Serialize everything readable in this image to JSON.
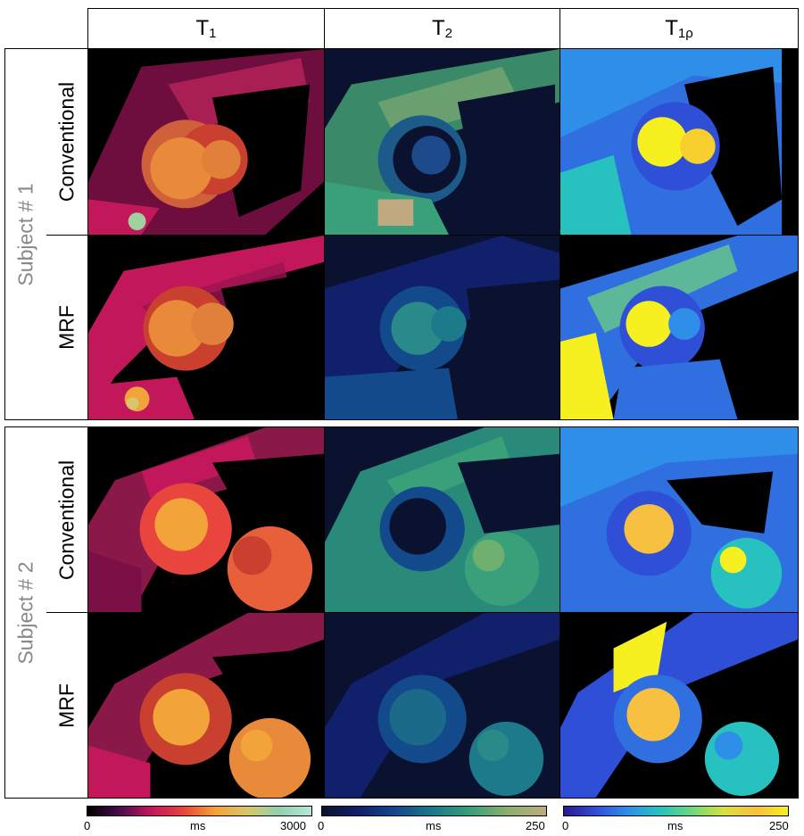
{
  "columns": [
    {
      "symbol": "T",
      "subscript": "1"
    },
    {
      "symbol": "T",
      "subscript": "2"
    },
    {
      "symbol": "T",
      "subscript": "1ρ"
    }
  ],
  "subjects": [
    {
      "label": "Subject # 1",
      "rows": [
        "Conventional",
        "MRF"
      ]
    },
    {
      "label": "Subject # 2",
      "rows": [
        "Conventional",
        "MRF"
      ]
    }
  ],
  "colorbars": [
    {
      "min": "0",
      "unit": "ms",
      "max": "3000",
      "colors": [
        "#000000",
        "#4a0a4f",
        "#c2185b",
        "#e8453c",
        "#f2a33a",
        "#d9c56a",
        "#8fd1b0",
        "#b8e6dc"
      ]
    },
    {
      "min": "0",
      "unit": "ms",
      "max": "250",
      "colors": [
        "#0b1230",
        "#10206a",
        "#134a8c",
        "#1c7a8a",
        "#3aa07a",
        "#8fb06a",
        "#c0a980"
      ]
    },
    {
      "min": "0",
      "unit": "ms",
      "max": "250",
      "colors": [
        "#2a1a8c",
        "#2f4fd6",
        "#2f8fe8",
        "#27c2c0",
        "#6fd77a",
        "#d9e040",
        "#f7c040",
        "#f7f020"
      ]
    }
  ]
}
